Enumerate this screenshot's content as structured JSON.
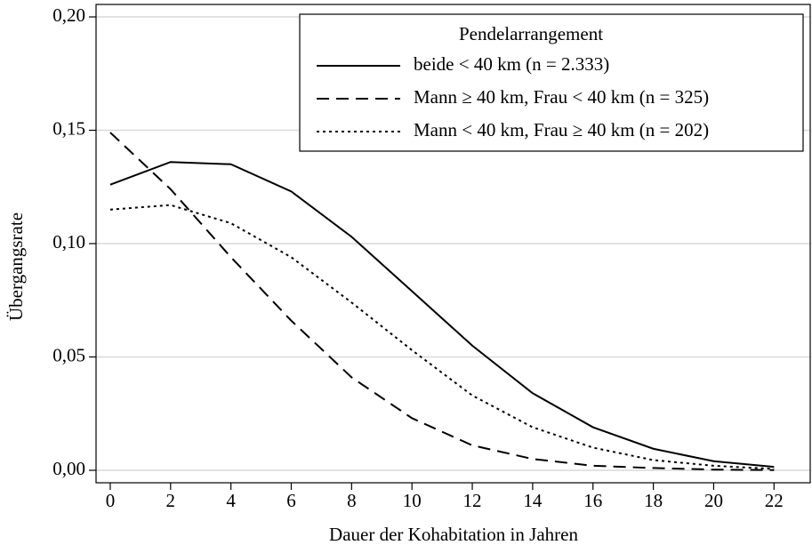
{
  "chart_data": {
    "type": "line",
    "xlabel": "Dauer der Kohabitation in Jahren",
    "ylabel": "Übergangsrate",
    "legend_title": "Pendelarrangement",
    "legend_position": "upper right",
    "grid": true,
    "x": [
      0,
      2,
      4,
      6,
      8,
      10,
      12,
      14,
      16,
      18,
      20,
      22
    ],
    "xlim": [
      -0.47,
      23.2
    ],
    "xticks": [
      0,
      2,
      4,
      6,
      8,
      10,
      12,
      14,
      16,
      18,
      20,
      22
    ],
    "ylim": [
      -0.0055,
      0.2055
    ],
    "yticks": [
      {
        "value": 0,
        "label": "0,00"
      },
      {
        "value": 0.05,
        "label": "0,05"
      },
      {
        "value": 0.1,
        "label": "0,10"
      },
      {
        "value": 0.15,
        "label": "0,15"
      },
      {
        "value": 0.2,
        "label": "0,20"
      }
    ],
    "series": [
      {
        "name": "beide < 40 km (n = 2.333)",
        "color": "#000000",
        "dash": "solid",
        "values": [
          0.126,
          0.136,
          0.135,
          0.123,
          0.103,
          0.079,
          0.055,
          0.034,
          0.019,
          0.0095,
          0.004,
          0.0015
        ]
      },
      {
        "name": "Mann ≥ 40 km, Frau < 40 km (n = 325)",
        "color": "#000000",
        "dash": "dashed",
        "values": [
          0.149,
          0.124,
          0.094,
          0.066,
          0.041,
          0.023,
          0.011,
          0.005,
          0.002,
          0.001,
          0.0003,
          0.0001
        ]
      },
      {
        "name": "Mann < 40 km, Frau ≥ 40 km (n = 202)",
        "color": "#000000",
        "dash": "dotted",
        "values": [
          0.115,
          0.117,
          0.109,
          0.094,
          0.074,
          0.053,
          0.033,
          0.019,
          0.01,
          0.0045,
          0.002,
          0.0006
        ]
      }
    ]
  }
}
